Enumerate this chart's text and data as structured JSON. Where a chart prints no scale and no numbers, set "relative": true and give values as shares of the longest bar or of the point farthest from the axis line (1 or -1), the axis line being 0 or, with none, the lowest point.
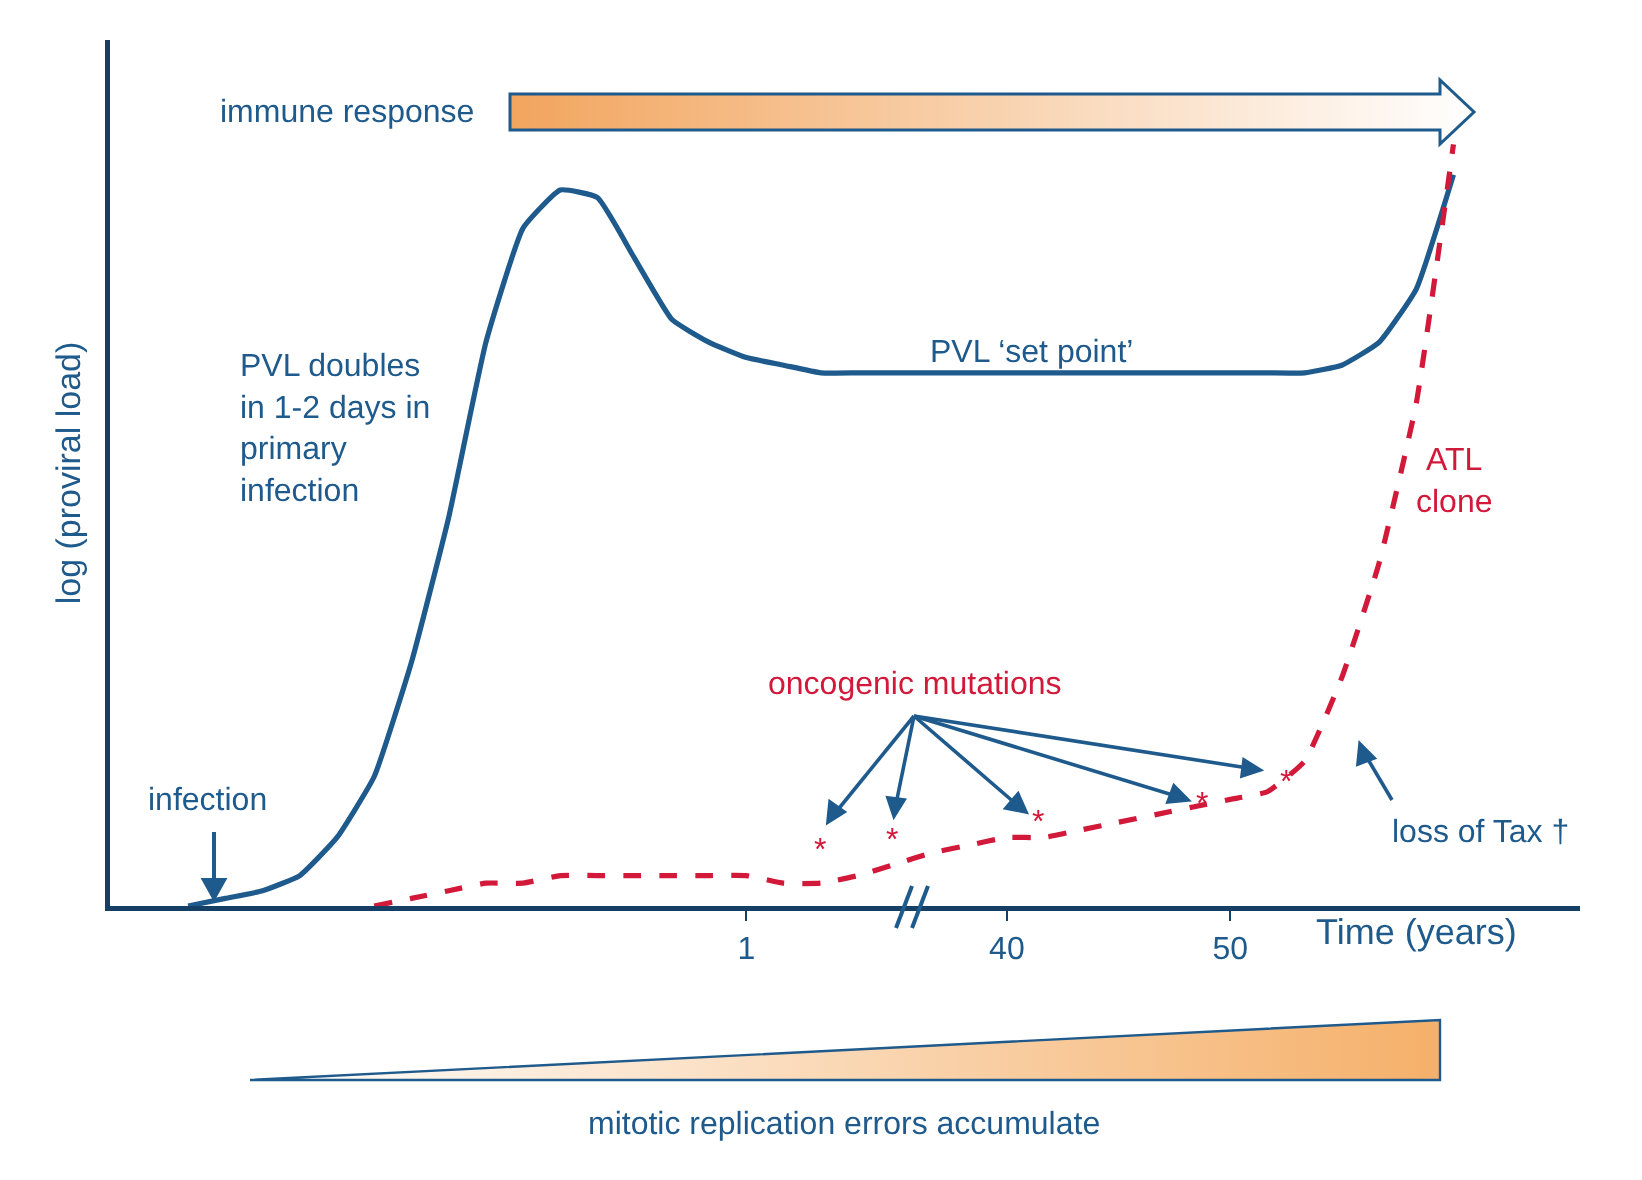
{
  "chart_data": {
    "type": "line",
    "relative": true,
    "categories": [
      null,
      null,
      null,
      null,
      null,
      null,
      null,
      null,
      null,
      null,
      null,
      null,
      null,
      null,
      null,
      null,
      null,
      "1",
      null,
      null,
      null,
      null,
      null,
      null,
      "40",
      null,
      null,
      null,
      null,
      null,
      "50",
      null,
      null,
      null,
      null,
      null,
      null,
      null,
      null,
      null
    ],
    "xlabel": "Time (years)",
    "ylabel": "log (proviral load)",
    "marker": "none",
    "legend": false,
    "grid": false,
    "series": [
      {
        "color": "#1f5a8c",
        "line_style": "solid",
        "values": [
          null,
          null,
          0,
          0.01,
          0.02,
          0.04,
          0.09,
          0.17,
          0.32,
          0.51,
          0.74,
          0.89,
          0.94,
          0.93,
          0.85,
          0.77,
          0.74,
          0.72,
          0.71,
          0.7,
          0.7,
          0.7,
          0.7,
          0.7,
          0.7,
          0.7,
          0.7,
          0.7,
          0.7,
          0.7,
          0.7,
          0.7,
          0.7,
          0.71,
          0.74,
          0.81,
          0.96,
          null,
          null,
          null
        ]
      },
      {
        "name": "ATL clone",
        "color": "#d2193a",
        "line_style": "dashed",
        "values": [
          null,
          null,
          null,
          null,
          null,
          null,
          null,
          0,
          0.01,
          0.02,
          0.03,
          0.03,
          0.04,
          0.04,
          0.04,
          0.04,
          0.04,
          0.04,
          0.03,
          0.03,
          0.04,
          0.055,
          0.07,
          0.08,
          0.09,
          0.09,
          0.1,
          0.11,
          0.12,
          0.13,
          0.14,
          0.15,
          0.19,
          0.3,
          0.45,
          0.66,
          1,
          null,
          null,
          null
        ]
      }
    ],
    "annotations": [
      "immune response",
      "PVL doubles\nin 1-2 days in\nprimary\ninfection",
      "PVL ‘set point’",
      "oncogenic mutations",
      "infection",
      "loss of Tax †",
      "*",
      "*",
      "*",
      "*",
      "*",
      "mitotic replication errors accumulate"
    ]
  }
}
